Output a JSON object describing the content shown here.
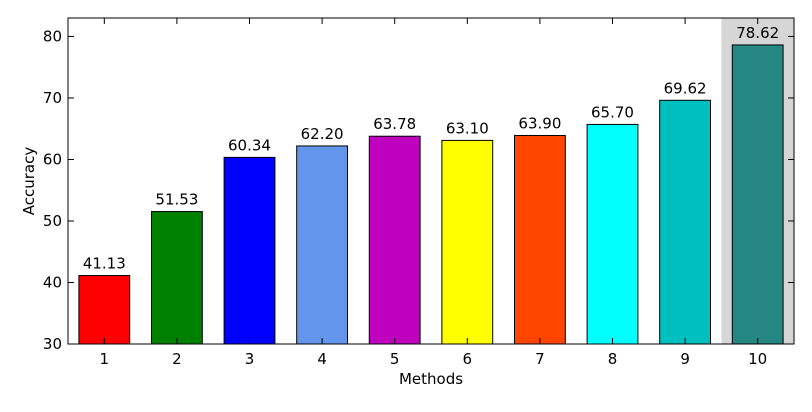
{
  "chart_data": {
    "type": "bar",
    "title": "",
    "xlabel": "Methods",
    "ylabel": "Accuracy",
    "ylim": [
      30,
      83
    ],
    "yticks": [
      30,
      40,
      50,
      60,
      70,
      80
    ],
    "categories": [
      "1",
      "2",
      "3",
      "4",
      "5",
      "6",
      "7",
      "8",
      "9",
      "10"
    ],
    "values": [
      41.13,
      51.53,
      60.34,
      62.2,
      63.78,
      63.1,
      63.9,
      65.7,
      69.62,
      78.62
    ],
    "value_labels": [
      "41.13",
      "51.53",
      "60.34",
      "62.20",
      "63.78",
      "63.10",
      "63.90",
      "65.70",
      "69.62",
      "78.62"
    ],
    "colors": [
      "#ff0000",
      "#008000",
      "#0000ff",
      "#6495ed",
      "#bf00bf",
      "#ffff00",
      "#ff4500",
      "#00ffff",
      "#00bfbf",
      "#268682"
    ],
    "highlight_index": 9,
    "highlight_color": "#d6d6d6",
    "grid": false,
    "legend": "none"
  }
}
